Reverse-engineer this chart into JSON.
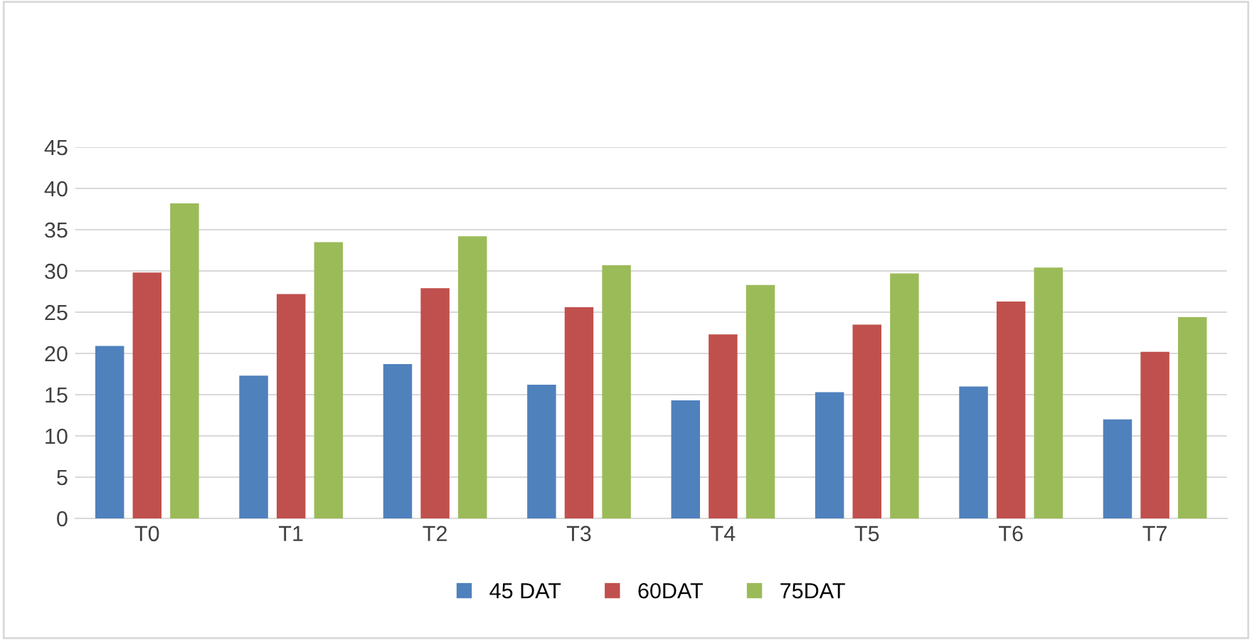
{
  "chart_data": {
    "type": "bar",
    "categories": [
      "T0",
      "T1",
      "T2",
      "T3",
      "T4",
      "T5",
      "T6",
      "T7"
    ],
    "series": [
      {
        "name": "45 DAT",
        "color": "#4f81bd",
        "values": [
          20.9,
          17.3,
          18.7,
          16.2,
          14.3,
          15.3,
          16.0,
          12.0
        ]
      },
      {
        "name": "60DAT",
        "color": "#c0504d",
        "values": [
          29.8,
          27.2,
          27.9,
          25.6,
          22.3,
          23.5,
          26.3,
          20.2
        ]
      },
      {
        "name": "75DAT",
        "color": "#9bbb59",
        "values": [
          38.2,
          33.5,
          34.2,
          30.7,
          28.3,
          29.7,
          30.4,
          24.4
        ]
      }
    ],
    "ylim": [
      0,
      45
    ],
    "yticks": [
      0,
      5,
      10,
      15,
      20,
      25,
      30,
      35,
      40,
      45
    ],
    "grid": "y",
    "legend": "bottom"
  }
}
